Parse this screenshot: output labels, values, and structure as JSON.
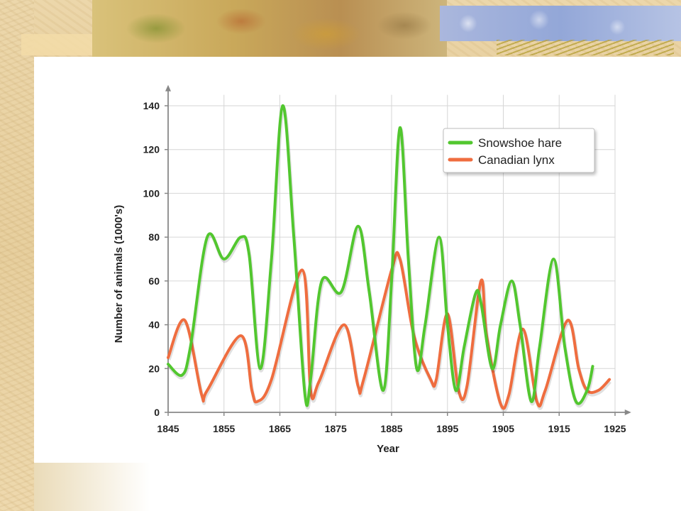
{
  "colors": {
    "hare": "#52c72f",
    "lynx": "#ef6d3f",
    "grid": "#d6d6d6",
    "axis": "#888888"
  },
  "chart_data": {
    "type": "line",
    "title": "",
    "xlabel": "Year",
    "ylabel": "Number of animals (1000's)",
    "xlim": [
      1845,
      1927
    ],
    "ylim": [
      0,
      145
    ],
    "xticks": [
      1845,
      1855,
      1865,
      1875,
      1885,
      1895,
      1905,
      1915,
      1925
    ],
    "yticks": [
      0,
      20,
      40,
      60,
      80,
      100,
      120,
      140
    ],
    "grid": true,
    "legend": "top-right",
    "series": [
      {
        "name": "Snowshoe hare",
        "color": "#52c72f",
        "points": [
          [
            1845,
            22
          ],
          [
            1847.5,
            17
          ],
          [
            1849,
            30
          ],
          [
            1852,
            80
          ],
          [
            1855,
            70
          ],
          [
            1858,
            80
          ],
          [
            1859.5,
            72
          ],
          [
            1861.5,
            20
          ],
          [
            1863.5,
            70
          ],
          [
            1865.5,
            140
          ],
          [
            1867.5,
            80
          ],
          [
            1869.5,
            8
          ],
          [
            1870.5,
            15
          ],
          [
            1872.5,
            60
          ],
          [
            1876,
            55
          ],
          [
            1879,
            85
          ],
          [
            1881,
            55
          ],
          [
            1883.5,
            10
          ],
          [
            1885,
            60
          ],
          [
            1886.5,
            130
          ],
          [
            1888,
            70
          ],
          [
            1889.5,
            20
          ],
          [
            1891,
            40
          ],
          [
            1893.5,
            80
          ],
          [
            1895,
            40
          ],
          [
            1896.5,
            10
          ],
          [
            1898,
            30
          ],
          [
            1900,
            54
          ],
          [
            1901,
            50
          ],
          [
            1903,
            20
          ],
          [
            1904.5,
            40
          ],
          [
            1906.5,
            60
          ],
          [
            1908,
            40
          ],
          [
            1910,
            5
          ],
          [
            1911.5,
            30
          ],
          [
            1914,
            70
          ],
          [
            1916,
            30
          ],
          [
            1918,
            5
          ],
          [
            1920,
            10
          ],
          [
            1921,
            21
          ]
        ]
      },
      {
        "name": "Canadian lynx",
        "color": "#ef6d3f",
        "points": [
          [
            1845,
            25
          ],
          [
            1848,
            42
          ],
          [
            1851,
            8
          ],
          [
            1852,
            10
          ],
          [
            1858,
            35
          ],
          [
            1860,
            10
          ],
          [
            1861,
            5
          ],
          [
            1863.5,
            15
          ],
          [
            1869,
            65
          ],
          [
            1870.5,
            10
          ],
          [
            1872,
            14
          ],
          [
            1876.5,
            40
          ],
          [
            1879,
            12
          ],
          [
            1880,
            15
          ],
          [
            1885,
            65
          ],
          [
            1886.5,
            70
          ],
          [
            1889,
            35
          ],
          [
            1892,
            15
          ],
          [
            1893,
            15
          ],
          [
            1895,
            45
          ],
          [
            1897,
            10
          ],
          [
            1898.5,
            12
          ],
          [
            1901,
            60
          ],
          [
            1902,
            35
          ],
          [
            1904.5,
            4
          ],
          [
            1906,
            8
          ],
          [
            1908.5,
            38
          ],
          [
            1911,
            5
          ],
          [
            1912.5,
            10
          ],
          [
            1916.5,
            42
          ],
          [
            1918.5,
            20
          ],
          [
            1920,
            10
          ],
          [
            1922,
            10
          ],
          [
            1924,
            15
          ]
        ]
      }
    ]
  }
}
